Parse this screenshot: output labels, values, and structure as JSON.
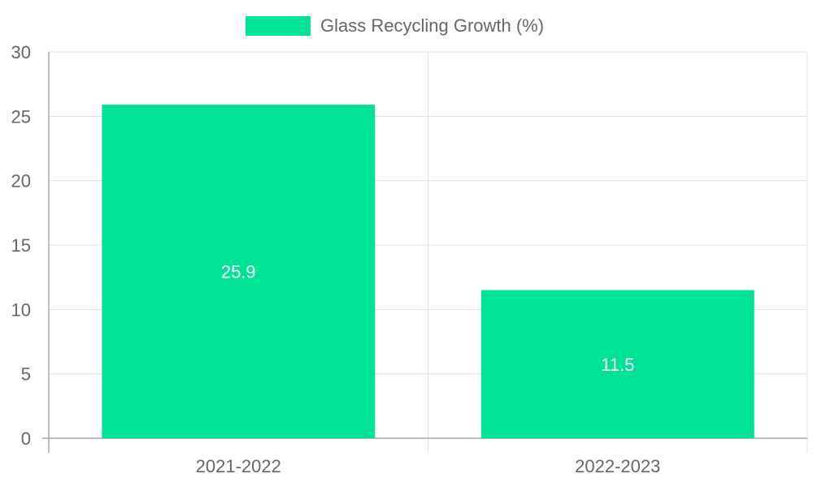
{
  "chart_data": {
    "type": "bar",
    "categories": [
      "2021-2022",
      "2022-2023"
    ],
    "series": [
      {
        "name": "Glass Recycling Growth (%)",
        "values": [
          25.9,
          11.5
        ],
        "color": "#00e296"
      }
    ],
    "data_labels": [
      "25.9",
      "11.5"
    ],
    "ylim": [
      0,
      30
    ],
    "yticks": [
      0,
      5,
      10,
      15,
      20,
      25,
      30
    ],
    "ytick_labels": [
      "0",
      "5",
      "10",
      "15",
      "20",
      "25",
      "30"
    ],
    "legend_position": "top-center",
    "grid": true,
    "colors": {
      "grid": "#e0e0e0",
      "axis": "#a6a6a6",
      "tick_text": "#666666",
      "data_label": "#ffffff"
    }
  }
}
